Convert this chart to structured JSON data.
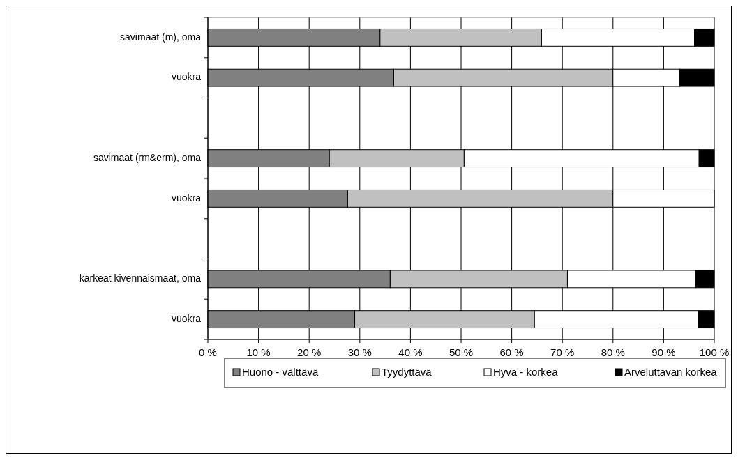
{
  "chart_data": {
    "type": "bar",
    "orientation": "horizontal",
    "stacked": true,
    "categories": [
      "savimaat (m), oma",
      "vuokra",
      null,
      "savimaat (rm&erm), oma",
      "vuokra",
      null,
      "karkeat kivennäismaat, oma",
      "vuokra"
    ],
    "series": [
      {
        "name": "Huono - välttävä",
        "color": "#808080",
        "values": [
          34.0,
          36.7,
          null,
          24.0,
          27.6,
          null,
          36.0,
          29.0
        ]
      },
      {
        "name": "Tyydyttävä",
        "color": "#c0c0c0",
        "values": [
          31.9,
          43.3,
          null,
          26.6,
          52.4,
          null,
          35.0,
          35.5
        ]
      },
      {
        "name": "Hyvä - korkea",
        "color": "#ffffff",
        "values": [
          30.2,
          13.2,
          null,
          46.4,
          20.0,
          null,
          25.3,
          32.3
        ]
      },
      {
        "name": "Arveluttavan korkea",
        "color": "#000000",
        "values": [
          3.9,
          6.8,
          null,
          3.0,
          0,
          null,
          3.7,
          3.2
        ]
      }
    ],
    "xlim": [
      0,
      100
    ],
    "xticks": [
      {
        "value": 0,
        "label": "0 %"
      },
      {
        "value": 10,
        "label": "10 %"
      },
      {
        "value": 20,
        "label": "20 %"
      },
      {
        "value": 30,
        "label": "30 %"
      },
      {
        "value": 40,
        "label": "40 %"
      },
      {
        "value": 50,
        "label": "50 %"
      },
      {
        "value": 60,
        "label": "60 %"
      },
      {
        "value": 70,
        "label": "70 %"
      },
      {
        "value": 80,
        "label": "80 %"
      },
      {
        "value": 90,
        "label": "90 %"
      },
      {
        "value": 100,
        "label": "100 %"
      }
    ],
    "grid": "x",
    "legend": "bottom"
  }
}
